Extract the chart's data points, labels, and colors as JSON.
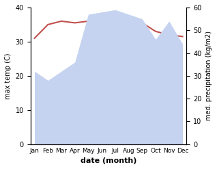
{
  "months": [
    "Jan",
    "Feb",
    "Mar",
    "Apr",
    "May",
    "Jun",
    "Jul",
    "Aug",
    "Sep",
    "Oct",
    "Nov",
    "Dec"
  ],
  "temperature": [
    31,
    35,
    36,
    35.5,
    36,
    36,
    34,
    36.5,
    35.5,
    33,
    32,
    31.5
  ],
  "precipitation": [
    32,
    28,
    32,
    36,
    57,
    58,
    59,
    57,
    55,
    46,
    54,
    44
  ],
  "temp_color": "#c0504d",
  "precip_color_fill": "#c5d3f0",
  "ylabel_left": "max temp (C)",
  "ylabel_right": "med. precipitation (kg/m2)",
  "xlabel": "date (month)",
  "ylim_left": [
    0,
    40
  ],
  "ylim_right": [
    0,
    60
  ],
  "yticks_left": [
    0,
    10,
    20,
    30,
    40
  ],
  "yticks_right": [
    0,
    10,
    20,
    30,
    40,
    50,
    60
  ],
  "background_color": "#ffffff"
}
